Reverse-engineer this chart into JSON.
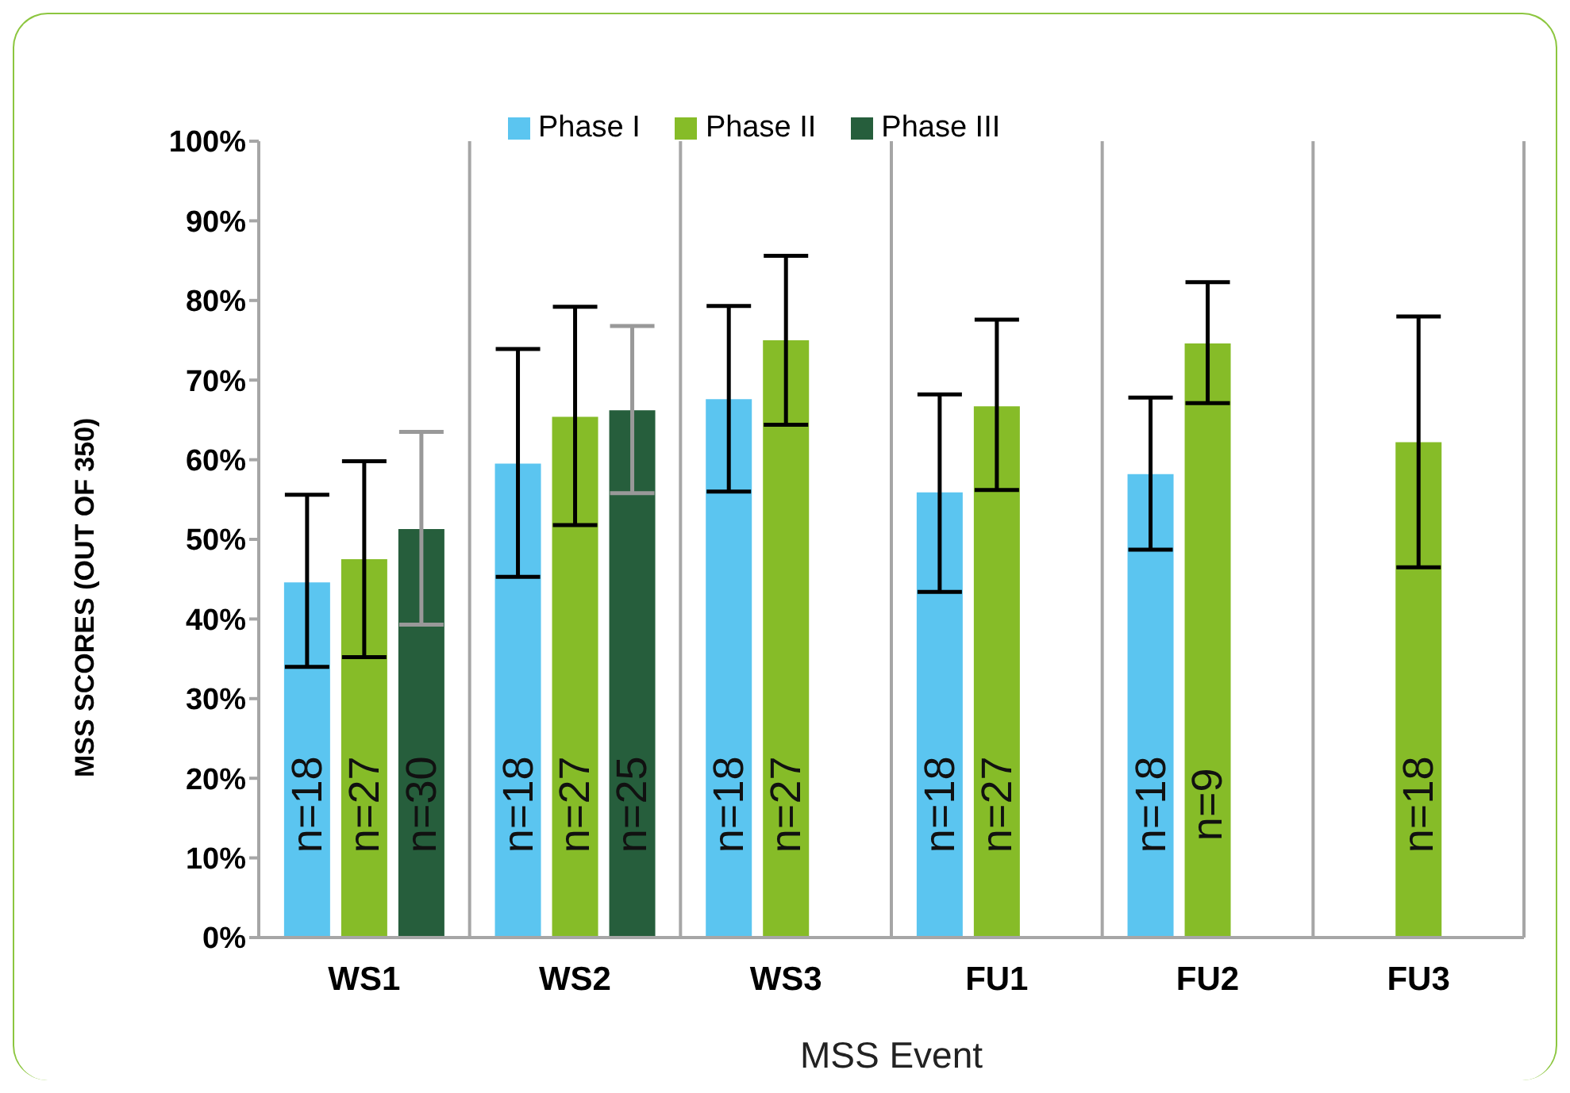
{
  "chart_data": {
    "type": "bar",
    "xlabel": "MSS Event",
    "ylabel": "MSS SCORES (OUT OF 350)",
    "categories": [
      "WS1",
      "WS2",
      "WS3",
      "FU1",
      "FU2",
      "FU3"
    ],
    "series": [
      {
        "name": "Phase I",
        "color": "#5bc5f0",
        "values": [
          44.6,
          59.5,
          67.6,
          55.9,
          58.2,
          null
        ],
        "errors": [
          [
            34.0,
            55.6
          ],
          [
            45.3,
            73.9
          ],
          [
            56.0,
            79.3
          ],
          [
            43.4,
            68.2
          ],
          [
            48.7,
            67.8
          ],
          null
        ]
      },
      {
        "name": "Phase II",
        "color": "#86bc28",
        "values": [
          47.5,
          65.4,
          75.0,
          66.7,
          74.6,
          62.2
        ],
        "errors": [
          [
            35.2,
            59.8
          ],
          [
            51.8,
            79.2
          ],
          [
            64.4,
            85.6
          ],
          [
            56.2,
            77.6
          ],
          [
            67.1,
            82.3
          ],
          [
            46.5,
            78.0
          ]
        ]
      },
      {
        "name": "Phase III",
        "color": "#265e3c",
        "values": [
          51.3,
          66.2,
          0,
          0,
          0,
          0
        ],
        "errors": [
          [
            39.3,
            63.5
          ],
          [
            55.8,
            76.8
          ],
          null,
          null,
          null,
          null
        ]
      }
    ],
    "annotations": [
      "n=18",
      "n=27",
      "n=30",
      "n=18",
      "n=27",
      "n=25",
      "n=18",
      "n=27",
      "n=18",
      "n=27",
      "n=18",
      "n=9",
      "n=18"
    ],
    "ylim": [
      0,
      100
    ],
    "yticks": [
      {
        "value": 0,
        "label": "0%"
      },
      {
        "value": 10,
        "label": "10%"
      },
      {
        "value": 20,
        "label": "20%"
      },
      {
        "value": 30,
        "label": "30%"
      },
      {
        "value": 40,
        "label": "40%"
      },
      {
        "value": 50,
        "label": "50%"
      },
      {
        "value": 60,
        "label": "60%"
      },
      {
        "value": 70,
        "label": "70%"
      },
      {
        "value": 80,
        "label": "80%"
      },
      {
        "value": 90,
        "label": "90%"
      },
      {
        "value": 100,
        "label": "100%"
      }
    ],
    "grid": "x",
    "legend": "top"
  }
}
